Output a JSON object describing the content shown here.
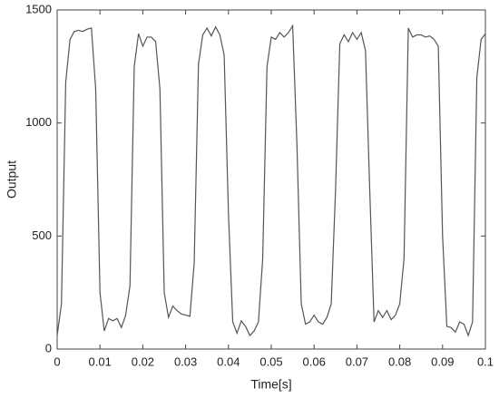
{
  "chart_data": {
    "type": "line",
    "xlabel": "Time[s]",
    "ylabel": "Output",
    "x": [
      0,
      0.001,
      0.002,
      0.003,
      0.004,
      0.005,
      0.006,
      0.007,
      0.008,
      0.009,
      0.01,
      0.011,
      0.012,
      0.013,
      0.014,
      0.015,
      0.016,
      0.017,
      0.018,
      0.019,
      0.02,
      0.021,
      0.022,
      0.023,
      0.024,
      0.025,
      0.026,
      0.027,
      0.028,
      0.029,
      0.03,
      0.031,
      0.032,
      0.033,
      0.034,
      0.035,
      0.036,
      0.037,
      0.038,
      0.039,
      0.04,
      0.041,
      0.042,
      0.043,
      0.044,
      0.045,
      0.046,
      0.047,
      0.048,
      0.049,
      0.05,
      0.051,
      0.052,
      0.053,
      0.054,
      0.055,
      0.056,
      0.057,
      0.058,
      0.059,
      0.06,
      0.061,
      0.062,
      0.063,
      0.064,
      0.065,
      0.066,
      0.067,
      0.068,
      0.069,
      0.07,
      0.071,
      0.072,
      0.073,
      0.074,
      0.075,
      0.076,
      0.077,
      0.078,
      0.079,
      0.08,
      0.081,
      0.082,
      0.083,
      0.084,
      0.085,
      0.086,
      0.087,
      0.088,
      0.089,
      0.09,
      0.091,
      0.092,
      0.093,
      0.094,
      0.095,
      0.096,
      0.097,
      0.098,
      0.099,
      0.1
    ],
    "series": [
      {
        "color": "#555555",
        "values": [
          60,
          200,
          1180,
          1370,
          1405,
          1410,
          1405,
          1415,
          1420,
          1150,
          250,
          80,
          135,
          125,
          135,
          95,
          150,
          280,
          1250,
          1395,
          1340,
          1380,
          1380,
          1360,
          1150,
          250,
          140,
          190,
          170,
          155,
          150,
          145,
          380,
          1260,
          1390,
          1420,
          1385,
          1425,
          1390,
          1300,
          600,
          120,
          70,
          125,
          100,
          60,
          80,
          120,
          400,
          1250,
          1380,
          1370,
          1400,
          1380,
          1400,
          1430,
          900,
          200,
          110,
          120,
          150,
          120,
          110,
          140,
          200,
          700,
          1350,
          1390,
          1360,
          1400,
          1370,
          1400,
          1320,
          700,
          120,
          170,
          140,
          170,
          130,
          150,
          200,
          400,
          1420,
          1380,
          1390,
          1390,
          1380,
          1385,
          1370,
          1340,
          500,
          100,
          95,
          75,
          120,
          110,
          60,
          120,
          1200,
          1370,
          1395
        ]
      }
    ],
    "xlim": [
      0,
      0.1
    ],
    "xticks": [
      0,
      0.01,
      0.02,
      0.03,
      0.04,
      0.05,
      0.06,
      0.07,
      0.08,
      0.09,
      0.1
    ],
    "ylim": [
      0,
      1500
    ],
    "yticks": [
      0,
      500,
      1000,
      1500
    ],
    "grid": false
  }
}
